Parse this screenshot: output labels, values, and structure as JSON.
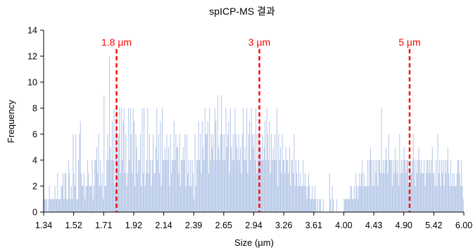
{
  "chart_data": {
    "type": "bar",
    "title": "spICP-MS 결과",
    "xlabel": "Size (µm)",
    "ylabel": "Frequency",
    "ylim": [
      0,
      14
    ],
    "y_ticks": [
      0,
      2,
      4,
      6,
      8,
      10,
      12,
      14
    ],
    "x_tick_labels": [
      "1.34",
      "1.52",
      "1.71",
      "1.92",
      "2.14",
      "2.39",
      "2.65",
      "2.94",
      "3.26",
      "3.61",
      "4.00",
      "4.43",
      "4.90",
      "5.42",
      "6.00"
    ],
    "grid": false,
    "legend": "none",
    "bar_color": "#b4c7e7",
    "frequencies": [
      1,
      1,
      1,
      1,
      0,
      1,
      2,
      1,
      1,
      1,
      1,
      1,
      2,
      1,
      1,
      3,
      1,
      1,
      1,
      2,
      2,
      3,
      1,
      3,
      3,
      1,
      1,
      4,
      3,
      1,
      2,
      1,
      6,
      3,
      2,
      6,
      1,
      1,
      4,
      6,
      7,
      3,
      2,
      2,
      3,
      1,
      2,
      2,
      4,
      3,
      2,
      2,
      2,
      4,
      1,
      2,
      4,
      4,
      5,
      3,
      6,
      2,
      4,
      2,
      3,
      1,
      9,
      2,
      2,
      4,
      6,
      4,
      12,
      5,
      4,
      7,
      4,
      8,
      2,
      6,
      8,
      4,
      6,
      8,
      3,
      8,
      4,
      7,
      8,
      3,
      6,
      2,
      3,
      8,
      4,
      8,
      6,
      3,
      8,
      7,
      2,
      6,
      5,
      3,
      4,
      4,
      6,
      2,
      8,
      3,
      8,
      2,
      3,
      4,
      8,
      3,
      6,
      4,
      2,
      4,
      6,
      3,
      3,
      5,
      8,
      4,
      6,
      3,
      7,
      2,
      8,
      4,
      4,
      5,
      4,
      6,
      4,
      5,
      2,
      6,
      3,
      4,
      4,
      7,
      4,
      6,
      5,
      5,
      3,
      6,
      2,
      4,
      4,
      5,
      4,
      6,
      2,
      6,
      3,
      4,
      2,
      4,
      2,
      4,
      3,
      1,
      6,
      2,
      4,
      4,
      7,
      4,
      6,
      3,
      7,
      5,
      4,
      8,
      6,
      6,
      7,
      3,
      8,
      4,
      6,
      5,
      6,
      4,
      8,
      7,
      4,
      9,
      5,
      4,
      6,
      9,
      6,
      4,
      6,
      4,
      8,
      5,
      6,
      7,
      3,
      8,
      5,
      4,
      6,
      4,
      8,
      6,
      5,
      4,
      6,
      4,
      5,
      3,
      6,
      8,
      4,
      5,
      4,
      8,
      3,
      6,
      7,
      4,
      8,
      6,
      5,
      6,
      4,
      8,
      3,
      6,
      4,
      7,
      5,
      4,
      6,
      4,
      5,
      7,
      4,
      8,
      6,
      4,
      7,
      3,
      6,
      4,
      5,
      4,
      6,
      4,
      8,
      2,
      6,
      4,
      5,
      3,
      6,
      4,
      4,
      3,
      5,
      4,
      4,
      3,
      5,
      2,
      4,
      4,
      3,
      6,
      2,
      4,
      3,
      2,
      4,
      2,
      3,
      2,
      2,
      4,
      2,
      3,
      2,
      1,
      2,
      3,
      2,
      1,
      1,
      2,
      1,
      1,
      2,
      1,
      0,
      1,
      0,
      1,
      1,
      0,
      0,
      1,
      0,
      0,
      0,
      0,
      0,
      0,
      3,
      1,
      0,
      2,
      1,
      0,
      0,
      0,
      1,
      0,
      0,
      0,
      0,
      0,
      0,
      0,
      1,
      1,
      1,
      1,
      1,
      1,
      1,
      2,
      2,
      1,
      1,
      2,
      1,
      3,
      2,
      1,
      2,
      3,
      2,
      3,
      4,
      2,
      3,
      2,
      2,
      2,
      4,
      2,
      4,
      5,
      4,
      2,
      4,
      2,
      4,
      3,
      4,
      2,
      4,
      4,
      3,
      8,
      3,
      4,
      3,
      4,
      5,
      4,
      3,
      6,
      4,
      4,
      4,
      2,
      4,
      3,
      5,
      4,
      3,
      4,
      2,
      6,
      3,
      4,
      3,
      4,
      5,
      4,
      3,
      4,
      4,
      2,
      3,
      4,
      3,
      4,
      6,
      4,
      2,
      4,
      3,
      4,
      5,
      4,
      3,
      4,
      3,
      3,
      4,
      2,
      3,
      4,
      4,
      3,
      4,
      3,
      4,
      5,
      3,
      3,
      2,
      4,
      2,
      6,
      3,
      4,
      2,
      4,
      3,
      4,
      2,
      4,
      3,
      4,
      5,
      3,
      2,
      4,
      2,
      3,
      2,
      3,
      2,
      2,
      3,
      4,
      4,
      3,
      2,
      4,
      2,
      1
    ],
    "markers": [
      {
        "label": "1.8 µm",
        "value": 1.8,
        "color": "#ff0000"
      },
      {
        "label": "3 µm",
        "value": 3.0,
        "color": "#ff0000"
      },
      {
        "label": "5 µm",
        "value": 5.0,
        "color": "#ff0000"
      }
    ]
  }
}
